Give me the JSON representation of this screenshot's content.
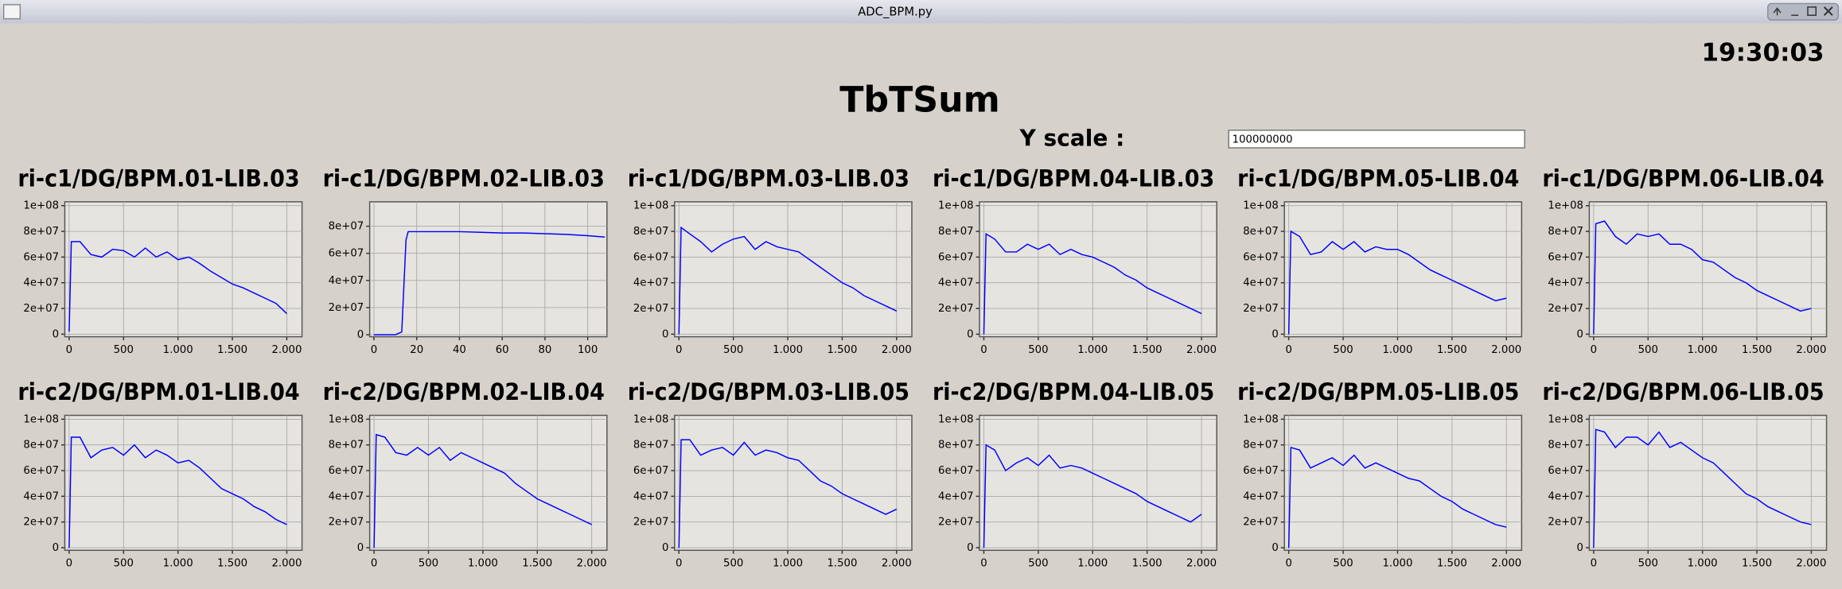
{
  "window": {
    "title": "ADC_BPM.py"
  },
  "clock": "19:30:03",
  "heading": "TbTSum",
  "y_scale": {
    "label": "Y scale :",
    "value": "100000000"
  },
  "chart_data": [
    {
      "type": "line",
      "title": "ri-c1/DG/BPM.01-LIB.03",
      "color": "#0000ff",
      "grid": true,
      "x": [
        0,
        20,
        100,
        200,
        300,
        400,
        500,
        600,
        700,
        800,
        900,
        1000,
        1100,
        1200,
        1300,
        1400,
        1500,
        1600,
        1700,
        1800,
        1900,
        2000
      ],
      "values": [
        2000000,
        72000000,
        72000000,
        62000000,
        60000000,
        66000000,
        65000000,
        60000000,
        67000000,
        60000000,
        64000000,
        58000000,
        60000000,
        55000000,
        49000000,
        44000000,
        39000000,
        36000000,
        32000000,
        28000000,
        24000000,
        16000000
      ],
      "xlim": [
        -40,
        2140
      ],
      "ylim": [
        -2000000,
        103000000
      ],
      "xticks": [
        0,
        500,
        {
          "value": 1000,
          "label": "1.000"
        },
        {
          "value": 1500,
          "label": "1.500"
        },
        {
          "value": 2000,
          "label": "2.000"
        }
      ],
      "yticks": [
        0,
        {
          "value": 20000000,
          "label": "2e+07"
        },
        {
          "value": 40000000,
          "label": "4e+07"
        },
        {
          "value": 60000000,
          "label": "6e+07"
        },
        {
          "value": 80000000,
          "label": "8e+07"
        },
        {
          "value": 100000000,
          "label": "1e+08"
        }
      ]
    },
    {
      "type": "line",
      "title": "ri-c1/DG/BPM.02-LIB.03",
      "color": "#0000ff",
      "grid": true,
      "x": [
        0,
        5,
        10,
        13,
        15,
        16,
        20,
        30,
        40,
        50,
        60,
        70,
        80,
        90,
        100,
        108
      ],
      "values": [
        0,
        0,
        0,
        2000000,
        70000000,
        76000000,
        76000000,
        76000000,
        76000000,
        75500000,
        75000000,
        75000000,
        74500000,
        74000000,
        73000000,
        72000000
      ],
      "xlim": [
        -2,
        109
      ],
      "ylim": [
        -1500000,
        98000000
      ],
      "xticks": [
        0,
        20,
        40,
        60,
        80,
        100
      ],
      "yticks": [
        0,
        {
          "value": 20000000,
          "label": "2e+07"
        },
        {
          "value": 40000000,
          "label": "4e+07"
        },
        {
          "value": 60000000,
          "label": "6e+07"
        },
        {
          "value": 80000000,
          "label": "8e+07"
        }
      ]
    },
    {
      "type": "line",
      "title": "ri-c1/DG/BPM.03-LIB.03",
      "color": "#0000ff",
      "grid": true,
      "x": [
        0,
        20,
        100,
        200,
        300,
        400,
        500,
        600,
        700,
        800,
        900,
        1000,
        1100,
        1200,
        1300,
        1400,
        1500,
        1600,
        1700,
        1800,
        1900,
        2000
      ],
      "values": [
        0,
        83000000,
        78000000,
        72000000,
        64000000,
        70000000,
        74000000,
        76000000,
        66000000,
        72000000,
        68000000,
        66000000,
        64000000,
        58000000,
        52000000,
        46000000,
        40000000,
        36000000,
        30000000,
        26000000,
        22000000,
        18000000
      ],
      "xlim": [
        -40,
        2140
      ],
      "ylim": [
        -2000000,
        103000000
      ],
      "xticks": [
        0,
        500,
        {
          "value": 1000,
          "label": "1.000"
        },
        {
          "value": 1500,
          "label": "1.500"
        },
        {
          "value": 2000,
          "label": "2.000"
        }
      ],
      "yticks": [
        0,
        {
          "value": 20000000,
          "label": "2e+07"
        },
        {
          "value": 40000000,
          "label": "4e+07"
        },
        {
          "value": 60000000,
          "label": "6e+07"
        },
        {
          "value": 80000000,
          "label": "8e+07"
        },
        {
          "value": 100000000,
          "label": "1e+08"
        }
      ]
    },
    {
      "type": "line",
      "title": "ri-c1/DG/BPM.04-LIB.03",
      "color": "#0000ff",
      "grid": true,
      "x": [
        0,
        20,
        100,
        200,
        300,
        400,
        500,
        600,
        700,
        800,
        900,
        1000,
        1100,
        1200,
        1300,
        1400,
        1500,
        1600,
        1700,
        1800,
        1900,
        2000
      ],
      "values": [
        0,
        78000000,
        74000000,
        64000000,
        64000000,
        70000000,
        66000000,
        70000000,
        62000000,
        66000000,
        62000000,
        60000000,
        56000000,
        52000000,
        46000000,
        42000000,
        36000000,
        32000000,
        28000000,
        24000000,
        20000000,
        16000000
      ],
      "xlim": [
        -40,
        2140
      ],
      "ylim": [
        -2000000,
        103000000
      ],
      "xticks": [
        0,
        500,
        {
          "value": 1000,
          "label": "1.000"
        },
        {
          "value": 1500,
          "label": "1.500"
        },
        {
          "value": 2000,
          "label": "2.000"
        }
      ],
      "yticks": [
        0,
        {
          "value": 20000000,
          "label": "2e+07"
        },
        {
          "value": 40000000,
          "label": "4e+07"
        },
        {
          "value": 60000000,
          "label": "6e+07"
        },
        {
          "value": 80000000,
          "label": "8e+07"
        },
        {
          "value": 100000000,
          "label": "1e+08"
        }
      ]
    },
    {
      "type": "line",
      "title": "ri-c1/DG/BPM.05-LIB.04",
      "color": "#0000ff",
      "grid": true,
      "x": [
        0,
        20,
        100,
        200,
        300,
        400,
        500,
        600,
        700,
        800,
        900,
        1000,
        1100,
        1200,
        1300,
        1400,
        1500,
        1600,
        1700,
        1800,
        1900,
        2000
      ],
      "values": [
        0,
        80000000,
        76000000,
        62000000,
        64000000,
        72000000,
        66000000,
        72000000,
        64000000,
        68000000,
        66000000,
        66000000,
        62000000,
        56000000,
        50000000,
        46000000,
        42000000,
        38000000,
        34000000,
        30000000,
        26000000,
        28000000
      ],
      "xlim": [
        -40,
        2140
      ],
      "ylim": [
        -2000000,
        103000000
      ],
      "xticks": [
        0,
        500,
        {
          "value": 1000,
          "label": "1.000"
        },
        {
          "value": 1500,
          "label": "1.500"
        },
        {
          "value": 2000,
          "label": "2.000"
        }
      ],
      "yticks": [
        0,
        {
          "value": 20000000,
          "label": "2e+07"
        },
        {
          "value": 40000000,
          "label": "4e+07"
        },
        {
          "value": 60000000,
          "label": "6e+07"
        },
        {
          "value": 80000000,
          "label": "8e+07"
        },
        {
          "value": 100000000,
          "label": "1e+08"
        }
      ]
    },
    {
      "type": "line",
      "title": "ri-c1/DG/BPM.06-LIB.04",
      "color": "#0000ff",
      "grid": true,
      "x": [
        0,
        20,
        100,
        200,
        300,
        400,
        500,
        600,
        700,
        800,
        900,
        1000,
        1100,
        1200,
        1300,
        1400,
        1500,
        1600,
        1700,
        1800,
        1900,
        2000
      ],
      "values": [
        0,
        86000000,
        88000000,
        76000000,
        70000000,
        78000000,
        76000000,
        78000000,
        70000000,
        70000000,
        66000000,
        58000000,
        56000000,
        50000000,
        44000000,
        40000000,
        34000000,
        30000000,
        26000000,
        22000000,
        18000000,
        20000000
      ],
      "xlim": [
        -40,
        2140
      ],
      "ylim": [
        -2000000,
        103000000
      ],
      "xticks": [
        0,
        500,
        {
          "value": 1000,
          "label": "1.000"
        },
        {
          "value": 1500,
          "label": "1.500"
        },
        {
          "value": 2000,
          "label": "2.000"
        }
      ],
      "yticks": [
        0,
        {
          "value": 20000000,
          "label": "2e+07"
        },
        {
          "value": 40000000,
          "label": "4e+07"
        },
        {
          "value": 60000000,
          "label": "6e+07"
        },
        {
          "value": 80000000,
          "label": "8e+07"
        },
        {
          "value": 100000000,
          "label": "1e+08"
        }
      ]
    },
    {
      "type": "line",
      "title": "ri-c2/DG/BPM.01-LIB.04",
      "color": "#0000ff",
      "grid": true,
      "x": [
        0,
        20,
        100,
        200,
        300,
        400,
        500,
        600,
        700,
        800,
        900,
        1000,
        1100,
        1200,
        1300,
        1400,
        1500,
        1600,
        1700,
        1800,
        1900,
        2000
      ],
      "values": [
        0,
        86000000,
        86000000,
        70000000,
        76000000,
        78000000,
        72000000,
        80000000,
        70000000,
        76000000,
        72000000,
        66000000,
        68000000,
        62000000,
        54000000,
        46000000,
        42000000,
        38000000,
        32000000,
        28000000,
        22000000,
        18000000
      ],
      "xlim": [
        -40,
        2140
      ],
      "ylim": [
        -2000000,
        103000000
      ],
      "xticks": [
        0,
        500,
        {
          "value": 1000,
          "label": "1.000"
        },
        {
          "value": 1500,
          "label": "1.500"
        },
        {
          "value": 2000,
          "label": "2.000"
        }
      ],
      "yticks": [
        0,
        {
          "value": 20000000,
          "label": "2e+07"
        },
        {
          "value": 40000000,
          "label": "4e+07"
        },
        {
          "value": 60000000,
          "label": "6e+07"
        },
        {
          "value": 80000000,
          "label": "8e+07"
        },
        {
          "value": 100000000,
          "label": "1e+08"
        }
      ]
    },
    {
      "type": "line",
      "title": "ri-c2/DG/BPM.02-LIB.04",
      "color": "#0000ff",
      "grid": true,
      "x": [
        0,
        20,
        100,
        200,
        300,
        400,
        500,
        600,
        700,
        800,
        900,
        1000,
        1100,
        1200,
        1300,
        1400,
        1500,
        1600,
        1700,
        1800,
        1900,
        2000
      ],
      "values": [
        0,
        88000000,
        86000000,
        74000000,
        72000000,
        78000000,
        72000000,
        78000000,
        68000000,
        74000000,
        70000000,
        66000000,
        62000000,
        58000000,
        50000000,
        44000000,
        38000000,
        34000000,
        30000000,
        26000000,
        22000000,
        18000000
      ],
      "xlim": [
        -40,
        2140
      ],
      "ylim": [
        -2000000,
        103000000
      ],
      "xticks": [
        0,
        500,
        {
          "value": 1000,
          "label": "1.000"
        },
        {
          "value": 1500,
          "label": "1.500"
        },
        {
          "value": 2000,
          "label": "2.000"
        }
      ],
      "yticks": [
        0,
        {
          "value": 20000000,
          "label": "2e+07"
        },
        {
          "value": 40000000,
          "label": "4e+07"
        },
        {
          "value": 60000000,
          "label": "6e+07"
        },
        {
          "value": 80000000,
          "label": "8e+07"
        },
        {
          "value": 100000000,
          "label": "1e+08"
        }
      ]
    },
    {
      "type": "line",
      "title": "ri-c2/DG/BPM.03-LIB.05",
      "color": "#0000ff",
      "grid": true,
      "x": [
        0,
        20,
        100,
        200,
        300,
        400,
        500,
        600,
        700,
        800,
        900,
        1000,
        1100,
        1200,
        1300,
        1400,
        1500,
        1600,
        1700,
        1800,
        1900,
        2000
      ],
      "values": [
        0,
        84000000,
        84000000,
        72000000,
        76000000,
        78000000,
        72000000,
        82000000,
        72000000,
        76000000,
        74000000,
        70000000,
        68000000,
        60000000,
        52000000,
        48000000,
        42000000,
        38000000,
        34000000,
        30000000,
        26000000,
        30000000
      ],
      "xlim": [
        -40,
        2140
      ],
      "ylim": [
        -2000000,
        103000000
      ],
      "xticks": [
        0,
        500,
        {
          "value": 1000,
          "label": "1.000"
        },
        {
          "value": 1500,
          "label": "1.500"
        },
        {
          "value": 2000,
          "label": "2.000"
        }
      ],
      "yticks": [
        0,
        {
          "value": 20000000,
          "label": "2e+07"
        },
        {
          "value": 40000000,
          "label": "4e+07"
        },
        {
          "value": 60000000,
          "label": "6e+07"
        },
        {
          "value": 80000000,
          "label": "8e+07"
        },
        {
          "value": 100000000,
          "label": "1e+08"
        }
      ]
    },
    {
      "type": "line",
      "title": "ri-c2/DG/BPM.04-LIB.05",
      "color": "#0000ff",
      "grid": true,
      "x": [
        0,
        20,
        100,
        200,
        300,
        400,
        500,
        600,
        700,
        800,
        900,
        1000,
        1100,
        1200,
        1300,
        1400,
        1500,
        1600,
        1700,
        1800,
        1900,
        2000
      ],
      "values": [
        0,
        80000000,
        76000000,
        60000000,
        66000000,
        70000000,
        64000000,
        72000000,
        62000000,
        64000000,
        62000000,
        58000000,
        54000000,
        50000000,
        46000000,
        42000000,
        36000000,
        32000000,
        28000000,
        24000000,
        20000000,
        26000000
      ],
      "xlim": [
        -40,
        2140
      ],
      "ylim": [
        -2000000,
        103000000
      ],
      "xticks": [
        0,
        500,
        {
          "value": 1000,
          "label": "1.000"
        },
        {
          "value": 1500,
          "label": "1.500"
        },
        {
          "value": 2000,
          "label": "2.000"
        }
      ],
      "yticks": [
        0,
        {
          "value": 20000000,
          "label": "2e+07"
        },
        {
          "value": 40000000,
          "label": "4e+07"
        },
        {
          "value": 60000000,
          "label": "6e+07"
        },
        {
          "value": 80000000,
          "label": "8e+07"
        },
        {
          "value": 100000000,
          "label": "1e+08"
        }
      ]
    },
    {
      "type": "line",
      "title": "ri-c2/DG/BPM.05-LIB.05",
      "color": "#0000ff",
      "grid": true,
      "x": [
        0,
        20,
        100,
        200,
        300,
        400,
        500,
        600,
        700,
        800,
        900,
        1000,
        1100,
        1200,
        1300,
        1400,
        1500,
        1600,
        1700,
        1800,
        1900,
        2000
      ],
      "values": [
        0,
        78000000,
        76000000,
        62000000,
        66000000,
        70000000,
        64000000,
        72000000,
        62000000,
        66000000,
        62000000,
        58000000,
        54000000,
        52000000,
        46000000,
        40000000,
        36000000,
        30000000,
        26000000,
        22000000,
        18000000,
        16000000
      ],
      "xlim": [
        -40,
        2140
      ],
      "ylim": [
        -2000000,
        103000000
      ],
      "xticks": [
        0,
        500,
        {
          "value": 1000,
          "label": "1.000"
        },
        {
          "value": 1500,
          "label": "1.500"
        },
        {
          "value": 2000,
          "label": "2.000"
        }
      ],
      "yticks": [
        0,
        {
          "value": 20000000,
          "label": "2e+07"
        },
        {
          "value": 40000000,
          "label": "4e+07"
        },
        {
          "value": 60000000,
          "label": "6e+07"
        },
        {
          "value": 80000000,
          "label": "8e+07"
        },
        {
          "value": 100000000,
          "label": "1e+08"
        }
      ]
    },
    {
      "type": "line",
      "title": "ri-c2/DG/BPM.06-LIB.05",
      "color": "#0000ff",
      "grid": true,
      "x": [
        0,
        20,
        100,
        200,
        300,
        400,
        500,
        600,
        700,
        800,
        900,
        1000,
        1100,
        1200,
        1300,
        1400,
        1500,
        1600,
        1700,
        1800,
        1900,
        2000
      ],
      "values": [
        0,
        92000000,
        90000000,
        78000000,
        86000000,
        86000000,
        80000000,
        90000000,
        78000000,
        82000000,
        76000000,
        70000000,
        66000000,
        58000000,
        50000000,
        42000000,
        38000000,
        32000000,
        28000000,
        24000000,
        20000000,
        18000000
      ],
      "xlim": [
        -40,
        2140
      ],
      "ylim": [
        -2000000,
        103000000
      ],
      "xticks": [
        0,
        500,
        {
          "value": 1000,
          "label": "1.000"
        },
        {
          "value": 1500,
          "label": "1.500"
        },
        {
          "value": 2000,
          "label": "2.000"
        }
      ],
      "yticks": [
        0,
        {
          "value": 20000000,
          "label": "2e+07"
        },
        {
          "value": 40000000,
          "label": "4e+07"
        },
        {
          "value": 60000000,
          "label": "6e+07"
        },
        {
          "value": 80000000,
          "label": "8e+07"
        },
        {
          "value": 100000000,
          "label": "1e+08"
        }
      ]
    }
  ]
}
